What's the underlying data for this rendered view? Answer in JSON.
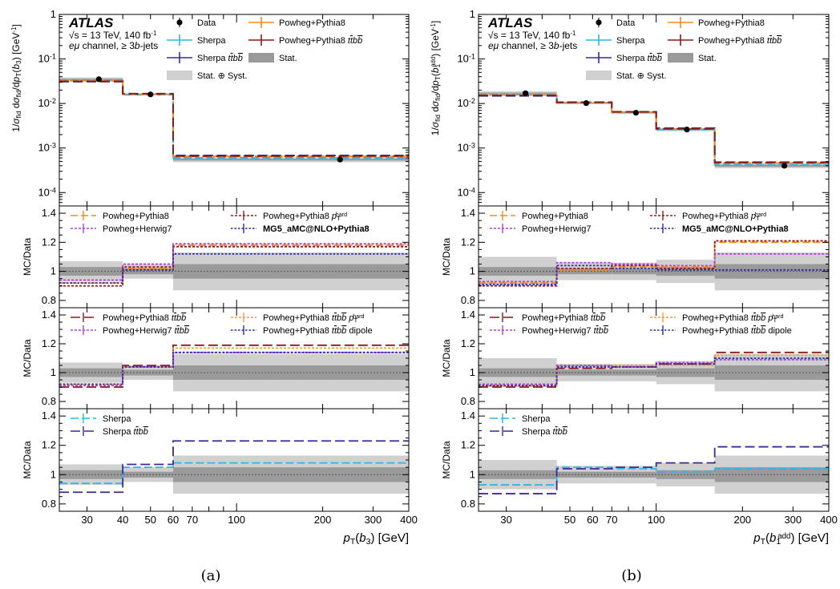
{
  "chart_data": [
    {
      "type": "line",
      "panel_label": "(a)",
      "experiment": "ATLAS",
      "info_lines": [
        "√s = 13 TeV, 140 fb⁻¹",
        "eμ channel, ≥ 3b-jets"
      ],
      "xlabel": "p_T(b_3) [GeV]",
      "xscale": "log",
      "xlim": [
        24,
        400
      ],
      "xticks": [
        30,
        40,
        50,
        60,
        70,
        100,
        200,
        300,
        400
      ],
      "bins": [
        24,
        40,
        60,
        400
      ],
      "top": {
        "ylabel": "1/σ_fid dσ_fid/dp_T(b_3) [GeV⁻¹]",
        "yscale": "log",
        "ylim": [
          5e-05,
          1
        ],
        "yticks": [
          "10^-4",
          "10^-3",
          "10^-2",
          "10^-1",
          "1"
        ],
        "legend": [
          "Data",
          "Sherpa",
          "Sherpa tt̄bb̄",
          "Stat. ⊕ Syst.",
          "Powheg+Pythia8",
          "Powheg+Pythia8 tt̄bb̄",
          "Stat."
        ],
        "data": {
          "x": [
            33,
            50,
            230
          ],
          "y": [
            0.035,
            0.016,
            0.00055
          ]
        },
        "series": [
          {
            "name": "Sherpa",
            "values": [
              0.033,
              0.0158,
              0.0006
            ]
          },
          {
            "name": "Sherpa tt̄bb̄",
            "values": [
              0.031,
              0.0163,
              0.00068
            ]
          },
          {
            "name": "Powheg+Pythia8",
            "values": [
              0.0322,
              0.0162,
              0.00065
            ]
          },
          {
            "name": "Powheg+Pythia8 tt̄bb̄",
            "values": [
              0.0315,
              0.0166,
              0.00066
            ]
          }
        ],
        "band_total_rel": [
          0.1,
          0.06,
          0.13
        ],
        "band_stat_rel": [
          0.03,
          0.02,
          0.05
        ]
      },
      "ratios": [
        {
          "ylabel": "MC/Data",
          "ylim": [
            0.75,
            1.45
          ],
          "yticks": [
            0.8,
            1,
            1.2,
            1.4
          ],
          "legend": [
            "Powheg+Pythia8",
            "Powheg+Pythia8 p_T^hard",
            "Powheg+Herwig7",
            "MG5_aMC@NLO+Pythia8"
          ],
          "series": [
            {
              "name": "Powheg+Pythia8",
              "values": [
                0.92,
                1.02,
                1.18
              ]
            },
            {
              "name": "Powheg+Pythia8 p_T^hard",
              "values": [
                0.9,
                1.03,
                1.17
              ]
            },
            {
              "name": "Powheg+Herwig7",
              "values": [
                0.94,
                1.05,
                1.19
              ]
            },
            {
              "name": "MG5_aMC@NLO+Pythia8",
              "values": [
                0.92,
                1.01,
                1.12
              ]
            }
          ],
          "band_total": [
            [
              0.93,
              1.07
            ],
            [
              0.95,
              1.05
            ],
            [
              0.87,
              1.13
            ]
          ],
          "band_stat": [
            [
              0.97,
              1.03
            ],
            [
              0.98,
              1.02
            ],
            [
              0.95,
              1.05
            ]
          ]
        },
        {
          "ylabel": "MC/Data",
          "ylim": [
            0.75,
            1.45
          ],
          "yticks": [
            0.8,
            1,
            1.2,
            1.4
          ],
          "legend": [
            "Powheg+Pythia8 tt̄bb̄",
            "Powheg+Pythia8 tt̄bb̄ p_T^hard",
            "Powheg+Herwig7 tt̄bb̄",
            "Powheg+Pythia8 tt̄bb̄ dipole"
          ],
          "series": [
            {
              "name": "Powheg+Pythia8 tt̄bb̄",
              "values": [
                0.9,
                1.05,
                1.19
              ]
            },
            {
              "name": "Powheg+Pythia8 tt̄bb̄ p_T^hard",
              "values": [
                0.92,
                1.04,
                1.17
              ]
            },
            {
              "name": "Powheg+Herwig7 tt̄bb̄",
              "values": [
                0.91,
                1.04,
                1.14
              ]
            },
            {
              "name": "Powheg+Pythia8 tt̄bb̄ dipole",
              "values": [
                0.92,
                1.04,
                1.14
              ]
            }
          ],
          "band_total": [
            [
              0.93,
              1.07
            ],
            [
              0.95,
              1.05
            ],
            [
              0.87,
              1.13
            ]
          ],
          "band_stat": [
            [
              0.97,
              1.03
            ],
            [
              0.98,
              1.02
            ],
            [
              0.95,
              1.05
            ]
          ]
        },
        {
          "ylabel": "MC/Data",
          "ylim": [
            0.75,
            1.45
          ],
          "yticks": [
            0.8,
            1,
            1.2,
            1.4
          ],
          "legend": [
            "Sherpa",
            "Sherpa tt̄bb̄"
          ],
          "series": [
            {
              "name": "Sherpa",
              "values": [
                0.94,
                1.05,
                1.08
              ]
            },
            {
              "name": "Sherpa tt̄bb̄",
              "values": [
                0.88,
                1.07,
                1.23
              ]
            }
          ],
          "band_total": [
            [
              0.93,
              1.07
            ],
            [
              0.95,
              1.05
            ],
            [
              0.87,
              1.13
            ]
          ],
          "band_stat": [
            [
              0.97,
              1.03
            ],
            [
              0.98,
              1.02
            ],
            [
              0.95,
              1.05
            ]
          ]
        }
      ]
    },
    {
      "type": "line",
      "panel_label": "(b)",
      "experiment": "ATLAS",
      "info_lines": [
        "√s = 13 TeV, 140 fb⁻¹",
        "eμ channel, ≥ 3b-jets"
      ],
      "xlabel": "p_T(b_1^add) [GeV]",
      "xscale": "log",
      "xlim": [
        24,
        400
      ],
      "xticks": [
        30,
        50,
        60,
        70,
        100,
        200,
        300,
        400
      ],
      "bins": [
        24,
        45,
        70,
        100,
        160,
        400
      ],
      "top": {
        "ylabel": "1/σ_fid dσ_fid/dp_T(b_1^add) [GeV⁻¹]",
        "yscale": "log",
        "ylim": [
          5e-05,
          1
        ],
        "yticks": [
          "10^-4",
          "10^-3",
          "10^-2",
          "10^-1",
          "1"
        ],
        "legend": [
          "Data",
          "Sherpa",
          "Sherpa tt̄bb̄",
          "Stat. ⊕ Syst.",
          "Powheg+Pythia8",
          "Powheg+Pythia8 tt̄bb̄",
          "Stat."
        ],
        "data": {
          "x": [
            35,
            57,
            85,
            128,
            280
          ],
          "y": [
            0.017,
            0.0102,
            0.0062,
            0.0026,
            0.0004
          ]
        },
        "series": [
          {
            "name": "Sherpa",
            "values": [
              0.0158,
              0.0105,
              0.0063,
              0.0026,
              0.00042
            ]
          },
          {
            "name": "Sherpa tt̄bb̄",
            "values": [
              0.0148,
              0.0107,
              0.0065,
              0.0028,
              0.00048
            ]
          },
          {
            "name": "Powheg+Pythia8",
            "values": [
              0.0155,
              0.0104,
              0.0064,
              0.00268,
              0.00046
            ]
          },
          {
            "name": "Powheg+Pythia8 tt̄bb̄",
            "values": [
              0.0152,
              0.0106,
              0.0065,
              0.0027,
              0.00047
            ]
          }
        ],
        "band_total_rel": [
          0.1,
          0.06,
          0.06,
          0.08,
          0.12
        ],
        "band_stat_rel": [
          0.03,
          0.02,
          0.02,
          0.03,
          0.05
        ]
      },
      "ratios": [
        {
          "ylabel": "MC/Data",
          "ylim": [
            0.75,
            1.45
          ],
          "yticks": [
            0.8,
            1,
            1.2,
            1.4
          ],
          "legend": [
            "Powheg+Pythia8",
            "Powheg+Pythia8 p_T^hard",
            "Powheg+Herwig7",
            "MG5_aMC@NLO+Pythia8"
          ],
          "series": [
            {
              "name": "Powheg+Pythia8",
              "values": [
                0.92,
                1.01,
                1.03,
                1.03,
                1.2
              ]
            },
            {
              "name": "Powheg+Pythia8 p_T^hard",
              "values": [
                0.9,
                1.02,
                1.04,
                1.02,
                1.21
              ]
            },
            {
              "name": "Powheg+Herwig7",
              "values": [
                0.93,
                1.06,
                1.05,
                1.04,
                1.12
              ]
            },
            {
              "name": "MG5_aMC@NLO+Pythia8",
              "values": [
                0.91,
                1.04,
                1.02,
                1.01,
                1.01
              ]
            }
          ],
          "band_total": [
            [
              0.9,
              1.1
            ],
            [
              0.94,
              1.06
            ],
            [
              0.94,
              1.06
            ],
            [
              0.92,
              1.08
            ],
            [
              0.87,
              1.13
            ]
          ],
          "band_stat": [
            [
              0.97,
              1.03
            ],
            [
              0.98,
              1.02
            ],
            [
              0.98,
              1.02
            ],
            [
              0.97,
              1.03
            ],
            [
              0.95,
              1.05
            ]
          ]
        },
        {
          "ylabel": "MC/Data",
          "ylim": [
            0.75,
            1.45
          ],
          "yticks": [
            0.8,
            1,
            1.2,
            1.4
          ],
          "legend": [
            "Powheg+Pythia8 tt̄bb̄",
            "Powheg+Pythia8 tt̄bb̄ p_T^hard",
            "Powheg+Herwig7 tt̄bb̄",
            "Powheg+Pythia8 tt̄bb̄ dipole"
          ],
          "series": [
            {
              "name": "Powheg+Pythia8 tt̄bb̄",
              "values": [
                0.9,
                1.03,
                1.04,
                1.06,
                1.14
              ]
            },
            {
              "name": "Powheg+Pythia8 tt̄bb̄ p_T^hard",
              "values": [
                0.91,
                1.05,
                1.05,
                1.05,
                1.12
              ]
            },
            {
              "name": "Powheg+Herwig7 tt̄bb̄",
              "values": [
                0.92,
                1.05,
                1.04,
                1.07,
                1.09
              ]
            },
            {
              "name": "Powheg+Pythia8 tt̄bb̄ dipole",
              "values": [
                0.91,
                1.04,
                1.04,
                1.06,
                1.1
              ]
            }
          ],
          "band_total": [
            [
              0.9,
              1.1
            ],
            [
              0.94,
              1.06
            ],
            [
              0.94,
              1.06
            ],
            [
              0.92,
              1.08
            ],
            [
              0.87,
              1.13
            ]
          ],
          "band_stat": [
            [
              0.97,
              1.03
            ],
            [
              0.98,
              1.02
            ],
            [
              0.98,
              1.02
            ],
            [
              0.97,
              1.03
            ],
            [
              0.95,
              1.05
            ]
          ]
        },
        {
          "ylabel": "MC/Data",
          "ylim": [
            0.75,
            1.45
          ],
          "yticks": [
            0.8,
            1,
            1.2,
            1.4
          ],
          "legend": [
            "Sherpa",
            "Sherpa tt̄bb̄"
          ],
          "series": [
            {
              "name": "Sherpa",
              "values": [
                0.93,
                1.05,
                1.04,
                1.02,
                1.04
              ]
            },
            {
              "name": "Sherpa tt̄bb̄",
              "values": [
                0.87,
                1.04,
                1.05,
                1.08,
                1.19
              ]
            }
          ],
          "band_total": [
            [
              0.9,
              1.1
            ],
            [
              0.94,
              1.06
            ],
            [
              0.94,
              1.06
            ],
            [
              0.92,
              1.08
            ],
            [
              0.87,
              1.13
            ]
          ],
          "band_stat": [
            [
              0.97,
              1.03
            ],
            [
              0.98,
              1.02
            ],
            [
              0.98,
              1.02
            ],
            [
              0.97,
              1.03
            ],
            [
              0.95,
              1.05
            ]
          ]
        }
      ]
    }
  ],
  "style": {
    "colors": {
      "Data": "#000000",
      "Sherpa": "#29b6e8",
      "Sherpa tt̄bb̄": "#3b2a9a",
      "Powheg+Pythia8": "#f28a1a",
      "Powheg+Pythia8 tt̄bb̄": "#8b1a1a",
      "Powheg+Pythia8 p_T^hard": "#a01818",
      "Powheg+Herwig7": "#b040e0",
      "MG5_aMC@NLO+Pythia8": "#2a2aa0",
      "Powheg+Pythia8 tt̄bb̄ p_T^hard": "#f4a030",
      "Powheg+Herwig7 tt̄bb̄": "#b040e0",
      "Powheg+Pythia8 tt̄bb̄ dipole": "#2a2aa0",
      "band_total": "#d0d0d0",
      "band_stat": "#9a9a9a"
    }
  }
}
